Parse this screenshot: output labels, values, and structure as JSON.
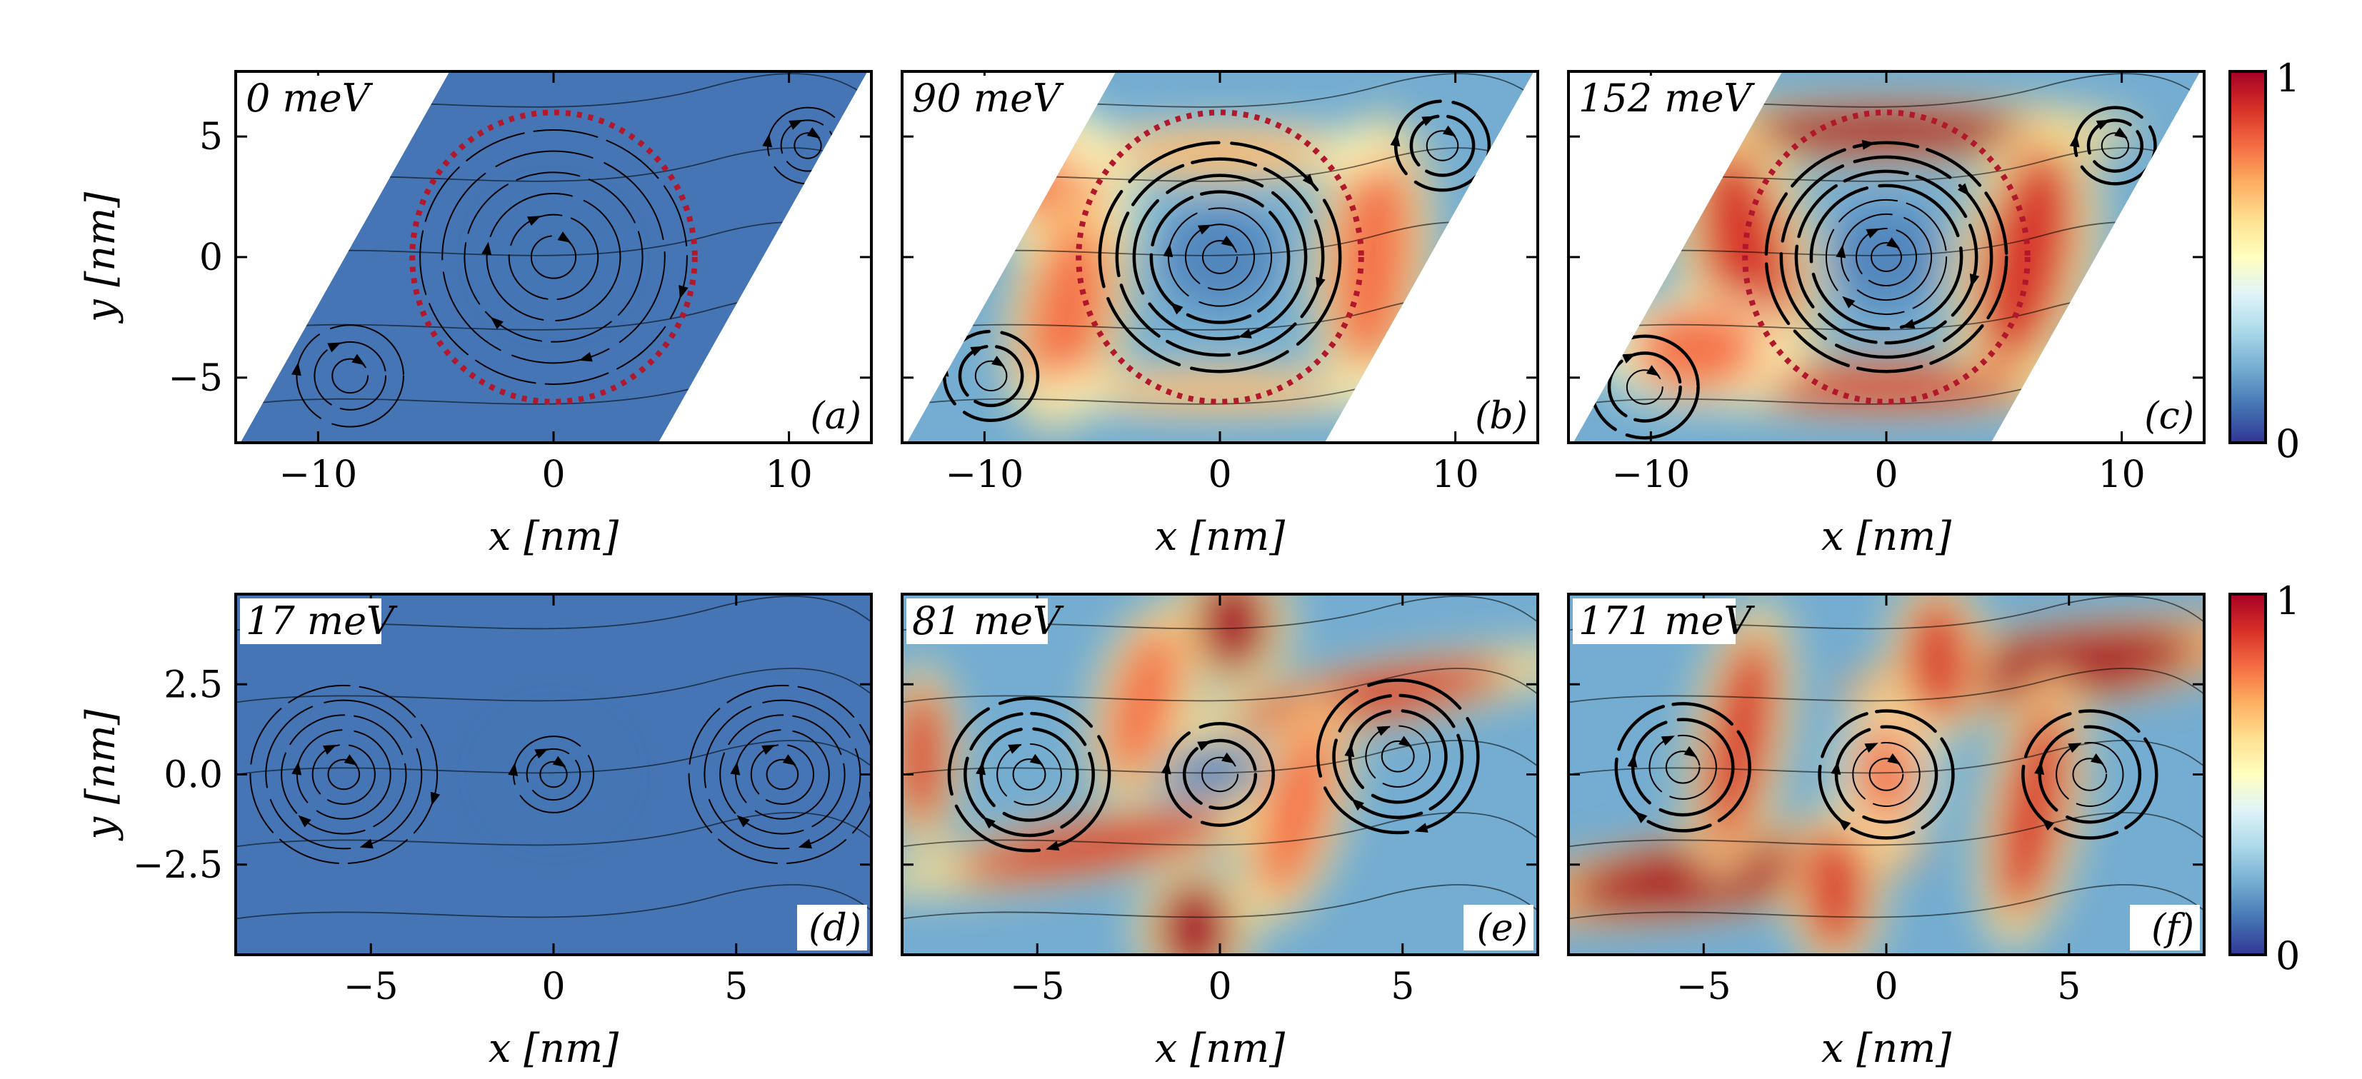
{
  "colormap": {
    "name": "RdYlBu_r",
    "stops": [
      "#313695",
      "#4575b4",
      "#74add1",
      "#abd9e9",
      "#e0f3f8",
      "#ffffbf",
      "#fee090",
      "#fdae61",
      "#f46d43",
      "#d73027",
      "#a50026"
    ],
    "min_label": "0",
    "max_label": "1"
  },
  "chart_data": [
    {
      "id": "a",
      "type": "heatmap",
      "energy_label": "0 meV",
      "panel_label": "(a)",
      "xlabel": "x [nm]",
      "ylabel": "y [nm]",
      "xlim": [
        -13.5,
        13.5
      ],
      "ylim": [
        -7.7,
        7.7
      ],
      "xticks": [
        -10,
        0,
        10
      ],
      "xtick_labels": [
        "−10",
        "0",
        "10"
      ],
      "yticks": [
        -5,
        0,
        5
      ],
      "ytick_labels": [
        "−5",
        "0",
        "5"
      ],
      "domain": "rhombus",
      "skew": 0.577,
      "intensity_scale": 0.08,
      "dotted_circle": {
        "color": "#b2182b",
        "radius_nm": 6.0
      }
    },
    {
      "id": "b",
      "type": "heatmap",
      "energy_label": "90 meV",
      "panel_label": "(b)",
      "xlabel": "x [nm]",
      "ylabel": "",
      "xlim": [
        -13.5,
        13.5
      ],
      "ylim": [
        -7.7,
        7.7
      ],
      "xticks": [
        -10,
        0,
        10
      ],
      "xtick_labels": [
        "−10",
        "0",
        "10"
      ],
      "yticks": [
        -5,
        0,
        5
      ],
      "ytick_labels": [],
      "domain": "rhombus",
      "skew": 0.577,
      "intensity_scale": 0.72,
      "dotted_circle": {
        "color": "#b2182b",
        "radius_nm": 6.0
      }
    },
    {
      "id": "c",
      "type": "heatmap",
      "energy_label": "152 meV",
      "panel_label": "(c)",
      "xlabel": "x [nm]",
      "ylabel": "",
      "xlim": [
        -13.5,
        13.5
      ],
      "ylim": [
        -7.7,
        7.7
      ],
      "xticks": [
        -10,
        0,
        10
      ],
      "xtick_labels": [
        "−10",
        "0",
        "10"
      ],
      "yticks": [
        -5,
        0,
        5
      ],
      "ytick_labels": [],
      "domain": "rhombus",
      "skew": 0.577,
      "intensity_scale": 0.95,
      "dotted_circle": {
        "color": "#b2182b",
        "radius_nm": 6.0
      }
    },
    {
      "id": "d",
      "type": "heatmap",
      "energy_label": "17 meV",
      "panel_label": "(d)",
      "xlabel": "x [nm]",
      "ylabel": "y [nm]",
      "xlim": [
        -8.7,
        8.7
      ],
      "ylim": [
        -5.0,
        5.0
      ],
      "xticks": [
        -5,
        0,
        5
      ],
      "xtick_labels": [
        "−5",
        "0",
        "5"
      ],
      "yticks": [
        -2.5,
        0,
        2.5
      ],
      "ytick_labels": [
        "−2.5",
        "0.0",
        "2.5"
      ],
      "domain": "rectangle",
      "intensity_scale": 0.12
    },
    {
      "id": "e",
      "type": "heatmap",
      "energy_label": "81 meV",
      "panel_label": "(e)",
      "xlabel": "x [nm]",
      "ylabel": "",
      "xlim": [
        -8.7,
        8.7
      ],
      "ylim": [
        -5.0,
        5.0
      ],
      "xticks": [
        -5,
        0,
        5
      ],
      "xtick_labels": [
        "−5",
        "0",
        "5"
      ],
      "yticks": [
        -2.5,
        0,
        2.5
      ],
      "ytick_labels": [],
      "domain": "rectangle",
      "intensity_scale": 0.92
    },
    {
      "id": "f",
      "type": "heatmap",
      "energy_label": "171 meV",
      "panel_label": "(f)",
      "xlabel": "x [nm]",
      "ylabel": "",
      "xlim": [
        -8.7,
        8.7
      ],
      "ylim": [
        -5.0,
        5.0
      ],
      "xticks": [
        -5,
        0,
        5
      ],
      "xtick_labels": [
        "−5",
        "0",
        "5"
      ],
      "yticks": [
        -2.5,
        0,
        2.5
      ],
      "ytick_labels": [],
      "domain": "rectangle",
      "intensity_scale": 1.0
    }
  ]
}
